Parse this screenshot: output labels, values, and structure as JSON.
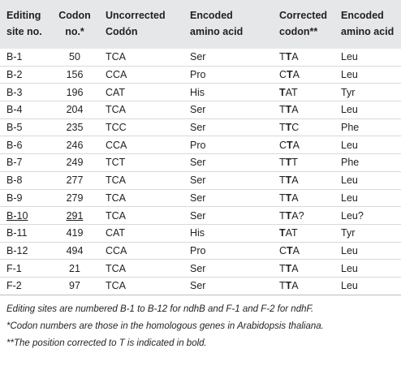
{
  "table": {
    "header": [
      [
        "Editing",
        "site no."
      ],
      [
        "Codon",
        "no.*"
      ],
      [
        "Uncorrected",
        "Codón"
      ],
      [
        "Encoded",
        "amino acid"
      ],
      [
        "Corrected",
        "codon**"
      ],
      [
        "Encoded",
        "amino acid"
      ]
    ],
    "rows": [
      [
        "B-1",
        "50",
        "TCA",
        "Ser",
        [
          {
            "text": "T"
          },
          {
            "text": "T",
            "bold": true
          },
          {
            "text": "A"
          }
        ],
        "Leu"
      ],
      [
        "B-2",
        "156",
        "CCA",
        "Pro",
        [
          {
            "text": "C"
          },
          {
            "text": "T",
            "bold": true
          },
          {
            "text": "A"
          }
        ],
        "Leu"
      ],
      [
        "B-3",
        "196",
        "CAT",
        "His",
        [
          {
            "text": "T",
            "bold": true
          },
          {
            "text": "AT"
          }
        ],
        "Tyr"
      ],
      [
        "B-4",
        "204",
        "TCA",
        "Ser",
        [
          {
            "text": "T"
          },
          {
            "text": "T",
            "bold": true
          },
          {
            "text": "A"
          }
        ],
        "Leu"
      ],
      [
        "B-5",
        "235",
        "TCC",
        "Ser",
        [
          {
            "text": "T"
          },
          {
            "text": "T",
            "bold": true
          },
          {
            "text": "C"
          }
        ],
        "Phe"
      ],
      [
        "B-6",
        "246",
        "CCA",
        "Pro",
        [
          {
            "text": "C"
          },
          {
            "text": "T",
            "bold": true
          },
          {
            "text": "A"
          }
        ],
        "Leu"
      ],
      [
        "B-7",
        "249",
        "TCT",
        "Ser",
        [
          {
            "text": "T"
          },
          {
            "text": "T",
            "bold": true
          },
          {
            "text": "T"
          }
        ],
        "Phe"
      ],
      [
        "B-8",
        "277",
        "TCA",
        "Ser",
        [
          {
            "text": "T"
          },
          {
            "text": "T",
            "bold": true
          },
          {
            "text": "A"
          }
        ],
        "Leu"
      ],
      [
        "B-9",
        "279",
        "TCA",
        "Ser",
        [
          {
            "text": "T"
          },
          {
            "text": "T",
            "bold": true
          },
          {
            "text": "A"
          }
        ],
        "Leu"
      ],
      [
        {
          "text": "B-10",
          "underline": true
        },
        {
          "text": "291",
          "underline": true
        },
        "TCA",
        "Ser",
        [
          {
            "text": "T"
          },
          {
            "text": "T",
            "bold": true
          },
          {
            "text": "A?"
          }
        ],
        "Leu?"
      ],
      [
        "B-11",
        "419",
        "CAT",
        "His",
        [
          {
            "text": "T",
            "bold": true
          },
          {
            "text": "AT"
          }
        ],
        "Tyr"
      ],
      [
        "B-12",
        "494",
        "CCA",
        "Pro",
        [
          {
            "text": "C"
          },
          {
            "text": "T",
            "bold": true
          },
          {
            "text": "A"
          }
        ],
        "Leu"
      ],
      [
        "F-1",
        "21",
        "TCA",
        "Ser",
        [
          {
            "text": "T"
          },
          {
            "text": "T",
            "bold": true
          },
          {
            "text": "A"
          }
        ],
        "Leu"
      ],
      [
        "F-2",
        "97",
        "TCA",
        "Ser",
        [
          {
            "text": "T"
          },
          {
            "text": "T",
            "bold": true
          },
          {
            "text": "A"
          }
        ],
        "Leu"
      ]
    ],
    "footnotes": [
      "Editing sites are numbered B-1 to B-12 for ndhB and F-1 and F-2 for ndhF.",
      "*Codon numbers are those in the homologous genes in Arabidopsis thaliana.",
      "**The position corrected to T is indicated in bold."
    ]
  }
}
